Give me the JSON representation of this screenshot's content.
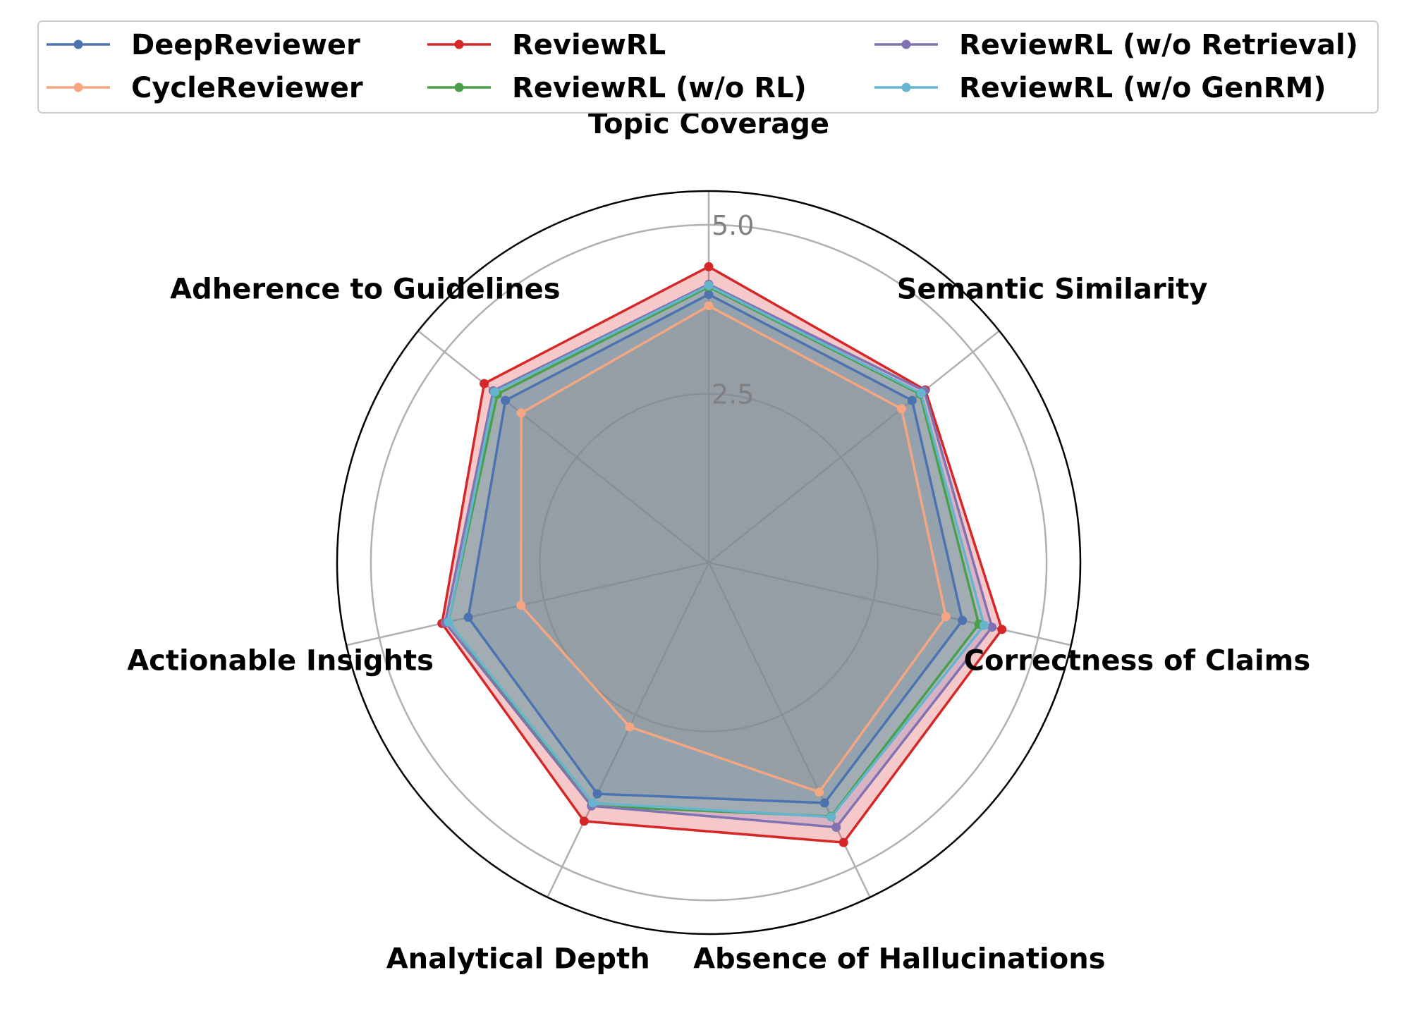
{
  "chart_data": {
    "type": "radar",
    "title": "",
    "axes": [
      "Topic Coverage",
      "Semantic Similarity",
      "Correctness of Claims",
      "Absence of Hallucinations",
      "Analytical Depth",
      "Actionable Insights",
      "Adherence to Guidelines"
    ],
    "rlim": [
      0,
      5.5
    ],
    "rticks": [
      2.5,
      5.0
    ],
    "rtick_labels": [
      "2.5",
      "5.0"
    ],
    "grid": true,
    "legend_position": "top",
    "series": [
      {
        "name": "DeepReviewer",
        "color": "#4c72b0",
        "values": [
          3.97,
          3.85,
          3.85,
          3.95,
          3.8,
          3.65,
          3.85
        ]
      },
      {
        "name": "CycleReviewer",
        "color": "#f4a582",
        "values": [
          3.8,
          3.65,
          3.6,
          3.77,
          2.7,
          2.85,
          3.55
        ]
      },
      {
        "name": "ReviewRL",
        "color": "#d62728",
        "values": [
          4.38,
          4.1,
          4.45,
          4.6,
          4.25,
          4.05,
          4.25
        ]
      },
      {
        "name": "ReviewRL (w/o RL)",
        "color": "#4aa04a",
        "values": [
          4.08,
          4.0,
          4.1,
          4.17,
          4.0,
          3.95,
          4.0
        ]
      },
      {
        "name": "ReviewRL (w/o Retrieval)",
        "color": "#8172b2",
        "values": [
          4.12,
          4.08,
          4.3,
          4.35,
          4.0,
          4.0,
          4.08
        ]
      },
      {
        "name": "ReviewRL (w/o GenRM)",
        "color": "#64b5cd",
        "values": [
          4.1,
          4.02,
          4.18,
          4.18,
          3.95,
          3.95,
          4.05
        ]
      }
    ]
  }
}
